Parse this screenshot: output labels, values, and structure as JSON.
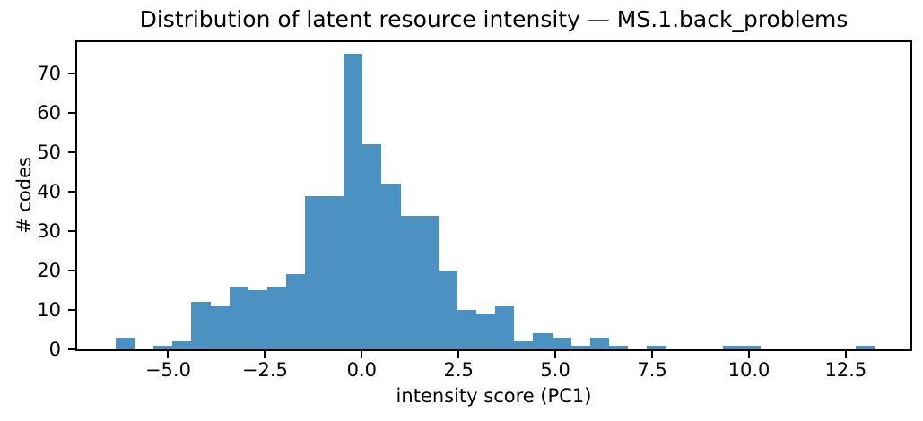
{
  "figure": {
    "title": "Distribution of latent resource intensity — MS.1.back_problems",
    "background_color": "#ffffff",
    "spine_color": "#000000",
    "text_color": "#000000"
  },
  "chart_data": {
    "type": "bar",
    "subtype": "histogram",
    "title": "Distribution of latent resource intensity — MS.1.back_problems",
    "xlabel": "intensity score (PC1)",
    "ylabel": "# codes",
    "bar_color": "#4B92C3",
    "grid": false,
    "legend": false,
    "bin_start": -6.36,
    "bin_width": 0.49,
    "n_bins": 40,
    "counts": [
      3,
      0,
      1,
      2,
      12,
      11,
      16,
      15,
      16,
      19,
      39,
      39,
      75,
      52,
      42,
      34,
      34,
      20,
      10,
      9,
      11,
      2,
      4,
      3,
      1,
      3,
      1,
      0,
      1,
      0,
      0,
      0,
      1,
      1,
      0,
      0,
      0,
      0,
      0,
      1
    ],
    "peak_bin": {
      "range": [
        -0.49,
        0.0
      ],
      "count": 75
    },
    "xlim": [
      -7.35,
      14.17
    ],
    "ylim": [
      0,
      78
    ],
    "xticks": [
      -5.0,
      -2.5,
      0.0,
      2.5,
      5.0,
      7.5,
      10.0,
      12.5
    ],
    "xtick_labels": [
      "−5.0",
      "−2.5",
      "0.0",
      "2.5",
      "5.0",
      "7.5",
      "10.0",
      "12.5"
    ],
    "yticks": [
      0,
      10,
      20,
      30,
      40,
      50,
      60,
      70
    ],
    "ytick_labels": [
      "0",
      "10",
      "20",
      "30",
      "40",
      "50",
      "60",
      "70"
    ]
  }
}
